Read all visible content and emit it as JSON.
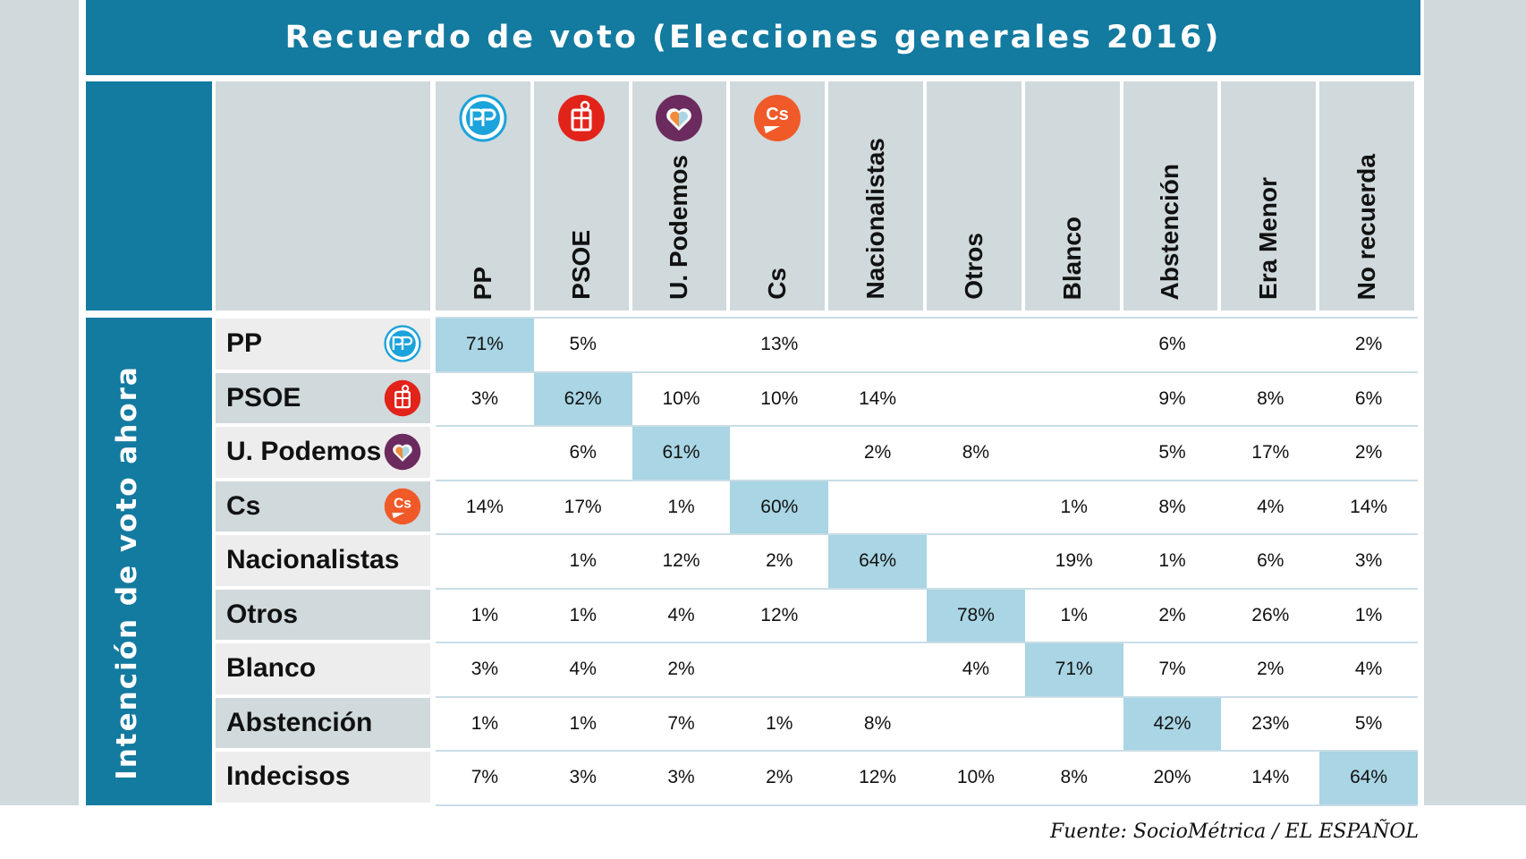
{
  "chart_data": {
    "type": "table",
    "title": "Recuerdo de voto (Elecciones generales 2016)",
    "row_axis_label": "Intención de voto ahora",
    "columns": [
      "PP",
      "PSOE",
      "U. Podemos",
      "Cs",
      "Nacionalistas",
      "Otros",
      "Blanco",
      "Abstención",
      "Era Menor",
      "No recuerda"
    ],
    "rows": [
      "PP",
      "PSOE",
      "U. Podemos",
      "Cs",
      "Nacionalistas",
      "Otros",
      "Blanco",
      "Abstención",
      "Indecisos"
    ],
    "cells": [
      [
        "71%",
        "5%",
        "",
        "13%",
        "",
        "",
        "",
        "6%",
        "",
        "2%"
      ],
      [
        "3%",
        "62%",
        "10%",
        "10%",
        "14%",
        "",
        "",
        "9%",
        "8%",
        "6%"
      ],
      [
        "",
        "6%",
        "61%",
        "",
        "2%",
        "8%",
        "",
        "5%",
        "17%",
        "2%"
      ],
      [
        "14%",
        "17%",
        "1%",
        "60%",
        "",
        "",
        "1%",
        "8%",
        "4%",
        "14%"
      ],
      [
        "",
        "1%",
        "12%",
        "2%",
        "64%",
        "",
        "19%",
        "1%",
        "6%",
        "3%"
      ],
      [
        "1%",
        "1%",
        "4%",
        "12%",
        "",
        "78%",
        "1%",
        "2%",
        "26%",
        "1%"
      ],
      [
        "3%",
        "4%",
        "2%",
        "",
        "",
        "4%",
        "71%",
        "7%",
        "2%",
        "4%"
      ],
      [
        "1%",
        "1%",
        "7%",
        "1%",
        "8%",
        "",
        "",
        "42%",
        "23%",
        "5%"
      ],
      [
        "7%",
        "3%",
        "3%",
        "2%",
        "12%",
        "10%",
        "8%",
        "20%",
        "14%",
        "64%"
      ]
    ],
    "highlighted": [
      [
        0,
        0
      ],
      [
        1,
        1
      ],
      [
        2,
        2
      ],
      [
        3,
        3
      ],
      [
        4,
        4
      ],
      [
        5,
        5
      ],
      [
        6,
        6
      ],
      [
        7,
        7
      ],
      [
        8,
        9
      ]
    ],
    "source": "Fuente: SocioMétrica / EL ESPAÑOL"
  },
  "colors": {
    "header_blue": "#137aa0",
    "header_gray": "#d0d9dc",
    "highlight": "#a9d5e4",
    "row_light": "#ededed",
    "row_dark": "#d0d9dc",
    "pp": "#1ba3db",
    "psoe": "#e2231a",
    "podemos": "#6b2b5e",
    "cs": "#f05a28"
  },
  "logos": {
    "pp": "pp-logo-icon",
    "psoe": "psoe-logo-icon",
    "podemos": "podemos-heart-icon",
    "cs": "cs-logo-icon"
  }
}
